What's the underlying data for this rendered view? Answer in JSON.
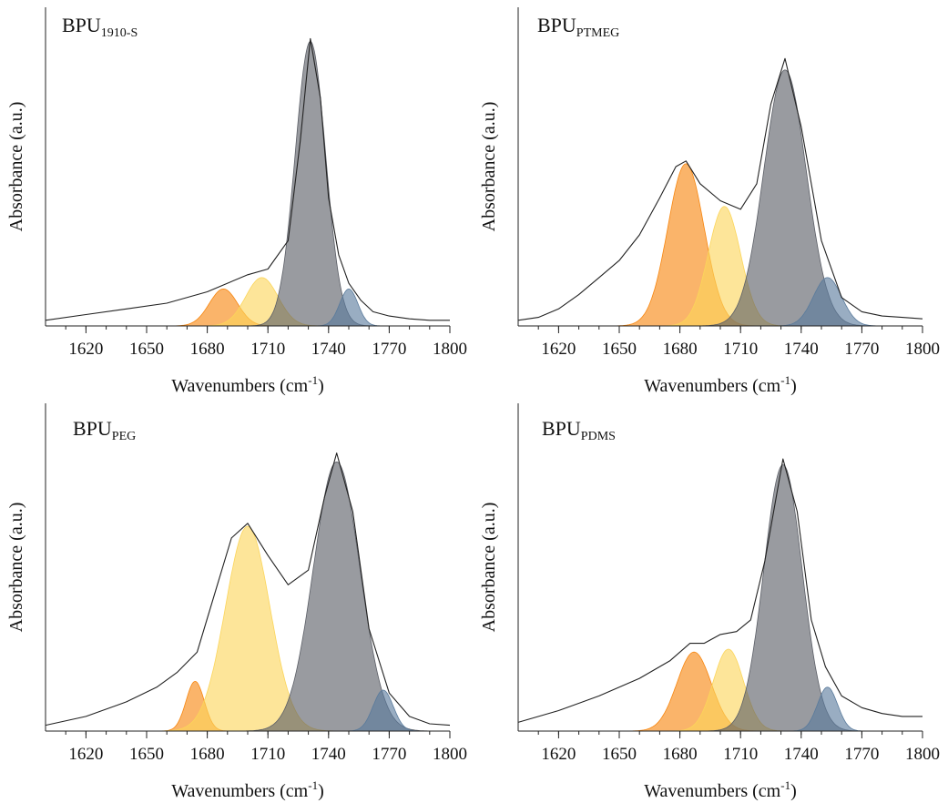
{
  "chart_data": [
    {
      "type": "area",
      "title": "BPU",
      "title_subscript": "1910-S",
      "xlabel": "Wavenumbers (cm",
      "xlabel_sup": "-1",
      "xlabel_end": ")",
      "ylabel": "Absorbance (a.u.)",
      "xlim": [
        1600,
        1800
      ],
      "ylim": [
        0,
        1.12
      ],
      "xticks": [
        "1620",
        "1650",
        "1680",
        "1710",
        "1740",
        "1770",
        "1800"
      ],
      "series": [
        {
          "center": 1688,
          "height": 0.13,
          "sigma": 7,
          "color": "#f7860f"
        },
        {
          "center": 1707,
          "height": 0.17,
          "sigma": 8,
          "color": "#fbd55a"
        },
        {
          "center": 1731,
          "height": 1.0,
          "sigma": 7.5,
          "color": "#5b5e66"
        },
        {
          "center": 1750,
          "height": 0.13,
          "sigma": 4.5,
          "color": "#5a7b9c"
        }
      ],
      "envelope": {
        "x": [
          1600,
          1620,
          1640,
          1660,
          1680,
          1690,
          1700,
          1710,
          1720,
          1726,
          1731,
          1736,
          1740,
          1745,
          1750,
          1756,
          1762,
          1770,
          1780,
          1790,
          1800
        ],
        "y": [
          0.02,
          0.04,
          0.06,
          0.08,
          0.12,
          0.15,
          0.18,
          0.2,
          0.3,
          0.65,
          1.01,
          0.8,
          0.45,
          0.25,
          0.15,
          0.09,
          0.05,
          0.035,
          0.025,
          0.02,
          0.02
        ]
      }
    },
    {
      "type": "area",
      "title": "BPU",
      "title_subscript": "PTMEG",
      "xlabel": "Wavenumbers (cm",
      "xlabel_sup": "-1",
      "xlabel_end": ")",
      "ylabel": "Absorbance (a.u.)",
      "xlim": [
        1600,
        1800
      ],
      "ylim": [
        0,
        1.12
      ],
      "xticks": [
        "1620",
        "1650",
        "1680",
        "1710",
        "1740",
        "1770",
        "1800"
      ],
      "series": [
        {
          "center": 1683,
          "height": 0.57,
          "sigma": 9,
          "color": "#f7860f"
        },
        {
          "center": 1702,
          "height": 0.42,
          "sigma": 8,
          "color": "#fbd55a"
        },
        {
          "center": 1732,
          "height": 0.9,
          "sigma": 10.5,
          "color": "#5b5e66"
        },
        {
          "center": 1753,
          "height": 0.17,
          "sigma": 7,
          "color": "#5a7b9c"
        }
      ],
      "envelope": {
        "x": [
          1600,
          1610,
          1620,
          1630,
          1640,
          1650,
          1660,
          1670,
          1678,
          1683,
          1690,
          1700,
          1710,
          1718,
          1725,
          1732,
          1740,
          1750,
          1760,
          1770,
          1780,
          1790,
          1800
        ],
        "y": [
          0.02,
          0.03,
          0.06,
          0.11,
          0.17,
          0.23,
          0.32,
          0.45,
          0.56,
          0.58,
          0.5,
          0.44,
          0.41,
          0.5,
          0.78,
          0.94,
          0.7,
          0.3,
          0.1,
          0.05,
          0.035,
          0.03,
          0.025
        ]
      }
    },
    {
      "type": "area",
      "title": "BPU",
      "title_subscript": "PEG",
      "xlabel": "Wavenumbers (cm",
      "xlabel_sup": "-1",
      "xlabel_end": ")",
      "ylabel": "Absorbance (a.u.)",
      "xlim": [
        1600,
        1800
      ],
      "ylim": [
        0,
        1.12
      ],
      "xticks": [
        "1620",
        "1650",
        "1680",
        "1710",
        "1740",
        "1770",
        "1800"
      ],
      "series": [
        {
          "center": 1674,
          "height": 0.17,
          "sigma": 4.5,
          "color": "#f7860f"
        },
        {
          "center": 1700,
          "height": 0.7,
          "sigma": 11,
          "color": "#fbd55a"
        },
        {
          "center": 1744,
          "height": 0.92,
          "sigma": 11.5,
          "color": "#5b5e66"
        },
        {
          "center": 1767,
          "height": 0.14,
          "sigma": 5,
          "color": "#5a7b9c"
        }
      ],
      "envelope": {
        "x": [
          1600,
          1620,
          1640,
          1655,
          1665,
          1675,
          1685,
          1692,
          1700,
          1710,
          1720,
          1730,
          1738,
          1744,
          1752,
          1760,
          1770,
          1780,
          1790,
          1800
        ],
        "y": [
          0.02,
          0.05,
          0.1,
          0.15,
          0.2,
          0.27,
          0.5,
          0.66,
          0.71,
          0.6,
          0.5,
          0.55,
          0.8,
          0.95,
          0.75,
          0.35,
          0.13,
          0.05,
          0.025,
          0.02
        ]
      }
    },
    {
      "type": "area",
      "title": "BPU",
      "title_subscript": "PDMS",
      "xlabel": "Wavenumbers (cm",
      "xlabel_sup": "-1",
      "xlabel_end": ")",
      "ylabel": "Absorbance (a.u.)",
      "xlim": [
        1600,
        1800
      ],
      "ylim": [
        0,
        1.12
      ],
      "xticks": [
        "1620",
        "1650",
        "1680",
        "1710",
        "1740",
        "1770",
        "1800"
      ],
      "series": [
        {
          "center": 1687,
          "height": 0.27,
          "sigma": 8.5,
          "color": "#f7860f"
        },
        {
          "center": 1704,
          "height": 0.28,
          "sigma": 7.5,
          "color": "#fbd55a"
        },
        {
          "center": 1731,
          "height": 0.91,
          "sigma": 9.5,
          "color": "#5b5e66"
        },
        {
          "center": 1753,
          "height": 0.15,
          "sigma": 5,
          "color": "#5a7b9c"
        }
      ],
      "envelope": {
        "x": [
          1600,
          1620,
          1640,
          1660,
          1675,
          1685,
          1692,
          1700,
          1708,
          1715,
          1722,
          1731,
          1738,
          1745,
          1752,
          1760,
          1770,
          1780,
          1790,
          1800
        ],
        "y": [
          0.03,
          0.07,
          0.12,
          0.18,
          0.24,
          0.3,
          0.3,
          0.33,
          0.34,
          0.38,
          0.58,
          0.93,
          0.75,
          0.38,
          0.22,
          0.12,
          0.08,
          0.06,
          0.05,
          0.05
        ]
      }
    }
  ]
}
